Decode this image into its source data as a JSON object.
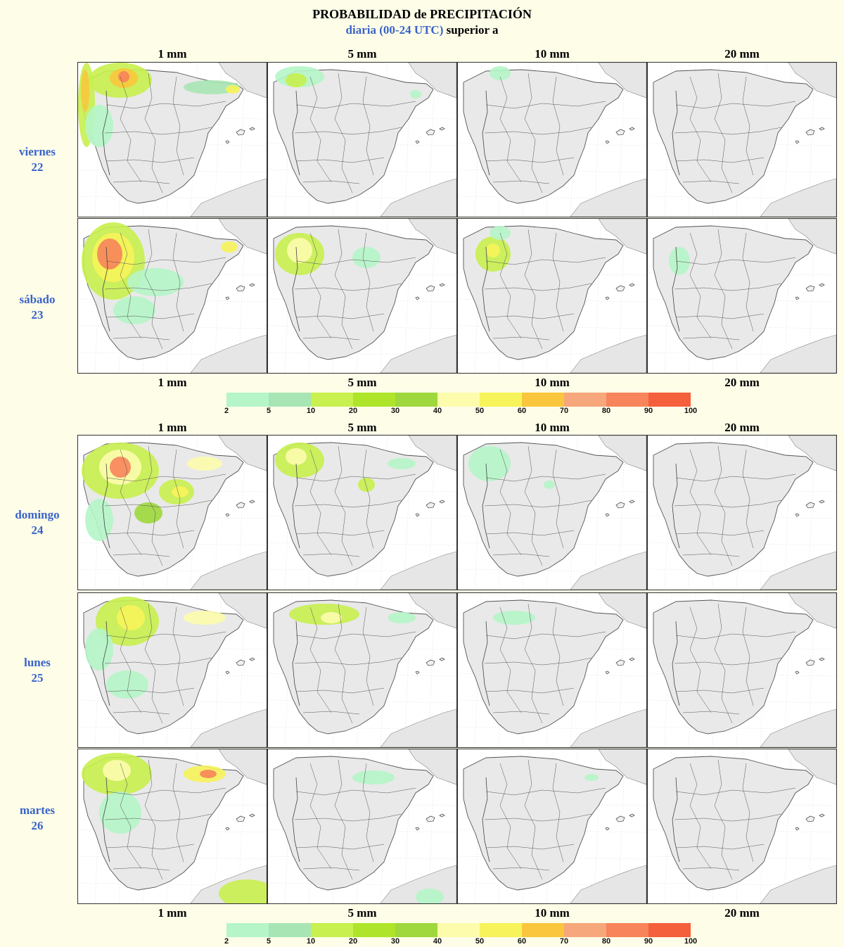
{
  "title": "PROBABILIDAD de PRECIPITACIÓN",
  "subtitle": {
    "blue": "diaria (00-24 UTC)",
    "black": "superior a"
  },
  "thresholds": [
    "1 mm",
    "5 mm",
    "10 mm",
    "20 mm"
  ],
  "days": [
    {
      "name": "viernes",
      "num": "22"
    },
    {
      "name": "sábado",
      "num": "23"
    },
    {
      "name": "domingo",
      "num": "24"
    },
    {
      "name": "lunes",
      "num": "25"
    },
    {
      "name": "martes",
      "num": "26"
    }
  ],
  "legend": {
    "ticks": [
      "2",
      "5",
      "10",
      "20",
      "30",
      "40",
      "50",
      "60",
      "70",
      "80",
      "90",
      "100"
    ],
    "colors": [
      "#b5f5c8",
      "#a8e5b4",
      "#c8f04e",
      "#aee52a",
      "#9ed83c",
      "#fdfcad",
      "#f7f35a",
      "#f9c63d",
      "#f7a77c",
      "#f7845a",
      "#f45f3c"
    ]
  }
}
